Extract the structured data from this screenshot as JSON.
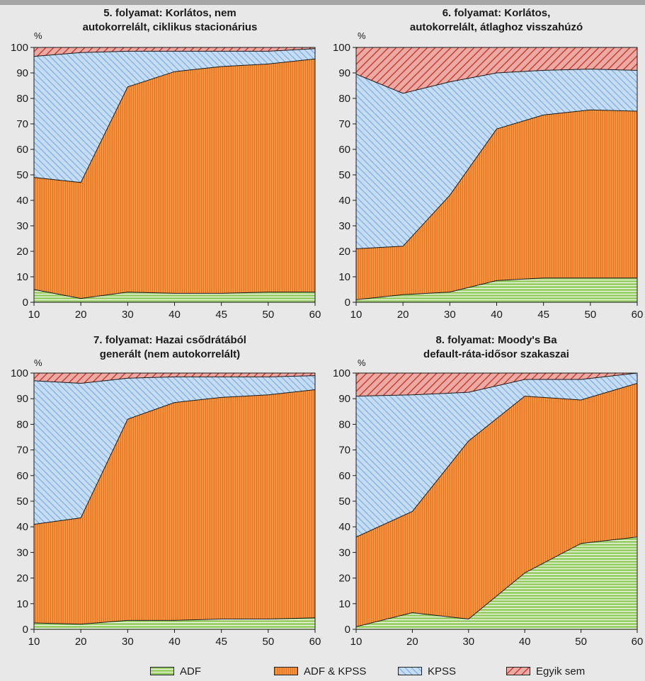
{
  "chart_data": [
    {
      "type": "area",
      "stacked": true,
      "title_line1": "5. folyamat: Korlátos, nem",
      "title_line2": "autokorrelált, ciklikus stacionárius",
      "ylabel": "%",
      "ylim": [
        0,
        100
      ],
      "y_ticks": [
        0,
        10,
        20,
        30,
        40,
        50,
        60,
        70,
        80,
        90,
        100
      ],
      "x_ticks": [
        "10",
        "20",
        "30",
        "40",
        "45",
        "50",
        "60"
      ],
      "series": [
        {
          "name": "ADF",
          "values": [
            5,
            1.5,
            4,
            3.5,
            3.5,
            4,
            4
          ]
        },
        {
          "name": "ADF & KPSS",
          "values": [
            44,
            45.5,
            80.5,
            87,
            89,
            89.5,
            91.5
          ]
        },
        {
          "name": "KPSS",
          "values": [
            47.5,
            51,
            14,
            8,
            6,
            5,
            4
          ]
        },
        {
          "name": "Egyik sem",
          "values": [
            3.5,
            2,
            1.5,
            1.5,
            1.5,
            1.5,
            0.5
          ]
        }
      ]
    },
    {
      "type": "area",
      "stacked": true,
      "title_line1": "6. folyamat: Korlátos,",
      "title_line2": "autokorrelált, átlaghoz visszahúzó",
      "ylabel": "%",
      "ylim": [
        0,
        100
      ],
      "y_ticks": [
        0,
        10,
        20,
        30,
        40,
        50,
        60,
        70,
        80,
        90,
        100
      ],
      "x_ticks": [
        "10",
        "20",
        "30",
        "40",
        "45",
        "50",
        "60"
      ],
      "series": [
        {
          "name": "ADF",
          "values": [
            1,
            3,
            4,
            8.5,
            9.5,
            9.5,
            9.5
          ]
        },
        {
          "name": "ADF & KPSS",
          "values": [
            20,
            19,
            38,
            59.5,
            64,
            66,
            65.5
          ]
        },
        {
          "name": "KPSS",
          "values": [
            68.5,
            60,
            44.5,
            22,
            17.5,
            16,
            16
          ]
        },
        {
          "name": "Egyik sem",
          "values": [
            10.5,
            18,
            13.5,
            10,
            9,
            8.5,
            9
          ]
        }
      ]
    },
    {
      "type": "area",
      "stacked": true,
      "title_line1": "7. folyamat: Hazai csődrátából",
      "title_line2": "generált (nem autokorrelált)",
      "ylabel": "%",
      "ylim": [
        0,
        100
      ],
      "y_ticks": [
        0,
        10,
        20,
        30,
        40,
        50,
        60,
        70,
        80,
        90,
        100
      ],
      "x_ticks": [
        "10",
        "20",
        "30",
        "40",
        "45",
        "50",
        "60"
      ],
      "series": [
        {
          "name": "ADF",
          "values": [
            2.5,
            2,
            3.5,
            3.5,
            4,
            4,
            4.5
          ]
        },
        {
          "name": "ADF & KPSS",
          "values": [
            38.5,
            41.5,
            78.5,
            85,
            86.5,
            87.5,
            89
          ]
        },
        {
          "name": "KPSS",
          "values": [
            56,
            52.5,
            16,
            10,
            8,
            7,
            5.5
          ]
        },
        {
          "name": "Egyik sem",
          "values": [
            3,
            4,
            2,
            1.5,
            1.5,
            1.5,
            1
          ]
        }
      ]
    },
    {
      "type": "area",
      "stacked": true,
      "title_line1": "8. folyamat: Moody's Ba",
      "title_line2": "default-ráta-idősor szakaszai",
      "ylabel": "%",
      "ylim": [
        0,
        100
      ],
      "y_ticks": [
        0,
        10,
        20,
        30,
        40,
        50,
        60,
        70,
        80,
        90,
        100
      ],
      "x_ticks": [
        "10",
        "20",
        "30",
        "40",
        "50",
        "60"
      ],
      "series": [
        {
          "name": "ADF",
          "values": [
            1,
            6.5,
            4,
            22,
            33.5,
            36
          ]
        },
        {
          "name": "ADF & KPSS",
          "values": [
            35,
            39.5,
            69.5,
            69,
            56,
            60
          ]
        },
        {
          "name": "KPSS",
          "values": [
            55,
            45.5,
            19,
            6.5,
            8,
            4
          ]
        },
        {
          "name": "Egyik sem",
          "values": [
            9,
            8.5,
            7.5,
            2.5,
            2.5,
            0
          ]
        }
      ]
    }
  ],
  "legend": [
    {
      "name": "ADF",
      "key": "adf"
    },
    {
      "name": "ADF & KPSS",
      "key": "both"
    },
    {
      "name": "KPSS",
      "key": "kpss"
    },
    {
      "name": "Egyik sem",
      "key": "none"
    }
  ],
  "colors": {
    "adf_fill": "#9ccf6b",
    "adf_line": "#ffffff",
    "both_fill": "#f5a04a",
    "both_line": "#e65a0d",
    "kpss_fill": "#c6dcf2",
    "kpss_line": "#7fb0e2",
    "none_fill": "#ecaaa4",
    "none_line": "#c8382f",
    "background": "#e8e8e9"
  }
}
